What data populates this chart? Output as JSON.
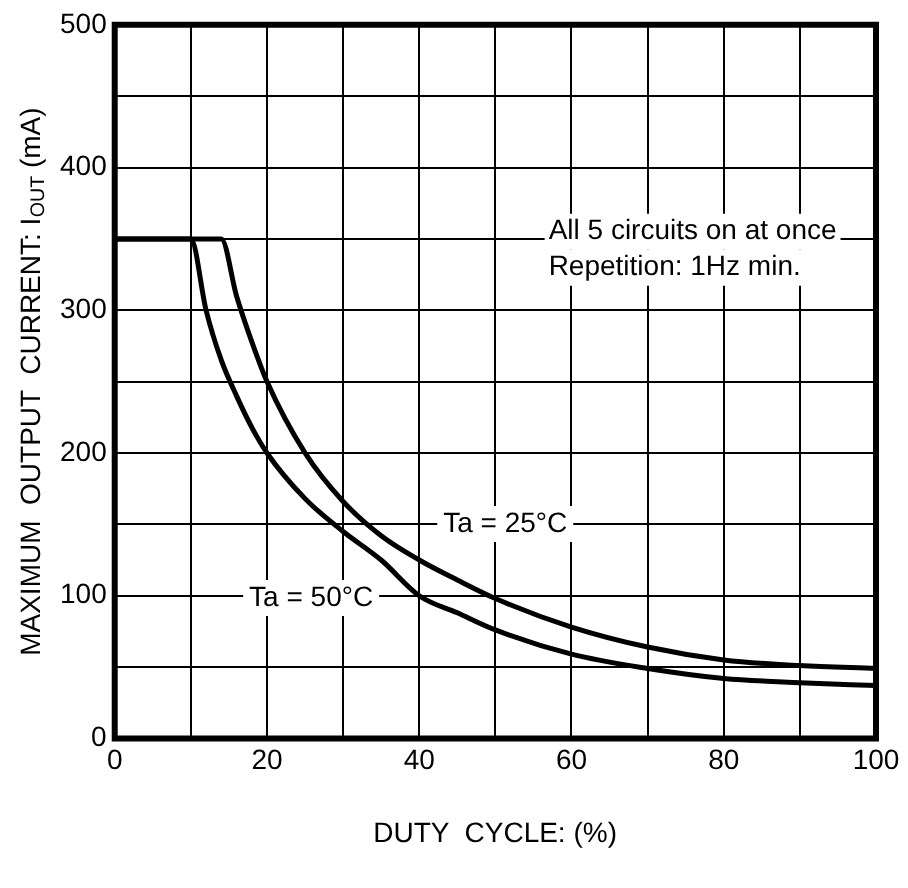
{
  "chart_data": {
    "type": "line",
    "xlabel": "DUTY  CYCLE: (%)",
    "ylabel": "MAXIMUM  OUTPUT  CURRENT: I$_{OUT}$ (mA)",
    "xlim": [
      0,
      100
    ],
    "ylim": [
      0,
      500
    ],
    "xticks": [
      0,
      {
        "value": 10,
        "label": null
      },
      20,
      {
        "value": 30,
        "label": null
      },
      40,
      {
        "value": 50,
        "label": null
      },
      60,
      {
        "value": 70,
        "label": null
      },
      80,
      {
        "value": 90,
        "label": null
      },
      100
    ],
    "yticks": [
      0,
      {
        "value": 50,
        "label": null
      },
      100,
      {
        "value": 150,
        "label": null
      },
      200,
      {
        "value": 250,
        "label": null
      },
      300,
      {
        "value": 350,
        "label": null
      },
      400,
      {
        "value": 450,
        "label": null
      },
      500
    ],
    "grid": true,
    "legend": false,
    "marker": "none",
    "line_style": "solid",
    "series": [
      {
        "name": "Ta = 25°C",
        "color": "#000000",
        "x": [
          0,
          14,
          16,
          18,
          20,
          25,
          30,
          35,
          40,
          45,
          50,
          60,
          70,
          80,
          90,
          100
        ],
        "values": [
          350,
          350,
          310,
          278,
          250,
          200,
          166,
          142,
          125,
          111,
          98,
          78,
          64,
          55,
          51,
          49
        ]
      },
      {
        "name": "Ta = 50°C",
        "color": "#000000",
        "x": [
          0,
          10,
          12,
          14,
          16,
          18,
          20,
          25,
          30,
          35,
          40,
          45,
          50,
          60,
          70,
          80,
          90,
          100
        ],
        "values": [
          350,
          350,
          300,
          265,
          240,
          218,
          200,
          168,
          145,
          125,
          100,
          88,
          76,
          59,
          49,
          42,
          39,
          37
        ]
      }
    ],
    "annotations": [
      "All 5 circuits on at once",
      "Repetition: 1Hz min."
    ]
  }
}
